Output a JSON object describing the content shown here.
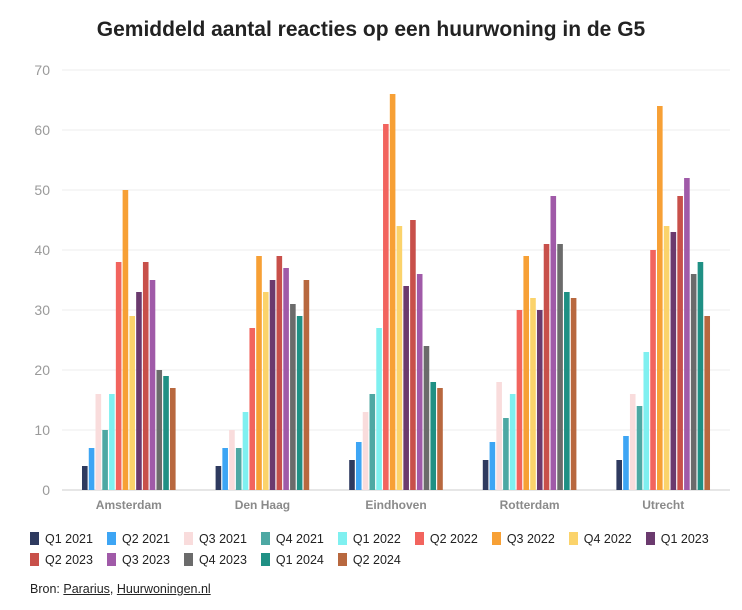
{
  "chart_data": {
    "type": "bar",
    "title": "Gemiddeld aantal reacties op een huurwoning in de G5",
    "xlabel": "",
    "ylabel": "",
    "ylim": [
      0,
      70
    ],
    "yticks": [
      0,
      10,
      20,
      30,
      40,
      50,
      60,
      70
    ],
    "grid": true,
    "legend_position": "bottom",
    "categories": [
      "Amsterdam",
      "Den Haag",
      "Eindhoven",
      "Rotterdam",
      "Utrecht"
    ],
    "series": [
      {
        "name": "Q1 2021",
        "color": "#2e3a5f",
        "values": [
          4,
          4,
          5,
          5,
          5
        ]
      },
      {
        "name": "Q2 2021",
        "color": "#3da5f4",
        "values": [
          7,
          7,
          8,
          8,
          9
        ]
      },
      {
        "name": "Q3 2021",
        "color": "#f9dcdc",
        "values": [
          16,
          10,
          13,
          18,
          16
        ]
      },
      {
        "name": "Q4 2021",
        "color": "#4da8a3",
        "values": [
          10,
          7,
          16,
          12,
          14
        ]
      },
      {
        "name": "Q1 2022",
        "color": "#7ff0f0",
        "values": [
          16,
          13,
          27,
          16,
          23
        ]
      },
      {
        "name": "Q2 2022",
        "color": "#f2645e",
        "values": [
          38,
          27,
          61,
          30,
          40
        ]
      },
      {
        "name": "Q3 2022",
        "color": "#f7a035",
        "values": [
          50,
          39,
          66,
          39,
          64
        ]
      },
      {
        "name": "Q4 2022",
        "color": "#fbd36b",
        "values": [
          29,
          33,
          44,
          32,
          44
        ]
      },
      {
        "name": "Q1 2023",
        "color": "#6b3a6e",
        "values": [
          33,
          35,
          34,
          30,
          43
        ]
      },
      {
        "name": "Q2 2023",
        "color": "#c8504a",
        "values": [
          38,
          39,
          45,
          41,
          49
        ]
      },
      {
        "name": "Q3 2023",
        "color": "#a05aa8",
        "values": [
          35,
          37,
          36,
          49,
          52
        ]
      },
      {
        "name": "Q4 2023",
        "color": "#6b6b6b",
        "values": [
          20,
          31,
          24,
          41,
          36
        ]
      },
      {
        "name": "Q1 2024",
        "color": "#1f9084",
        "values": [
          19,
          29,
          18,
          33,
          38
        ]
      },
      {
        "name": "Q2 2024",
        "color": "#b8683f",
        "values": [
          17,
          35,
          17,
          32,
          29
        ]
      }
    ]
  },
  "source": {
    "prefix": "Bron: ",
    "link1": "Pararius",
    "separator": ", ",
    "link2": "Huurwoningen.nl"
  }
}
